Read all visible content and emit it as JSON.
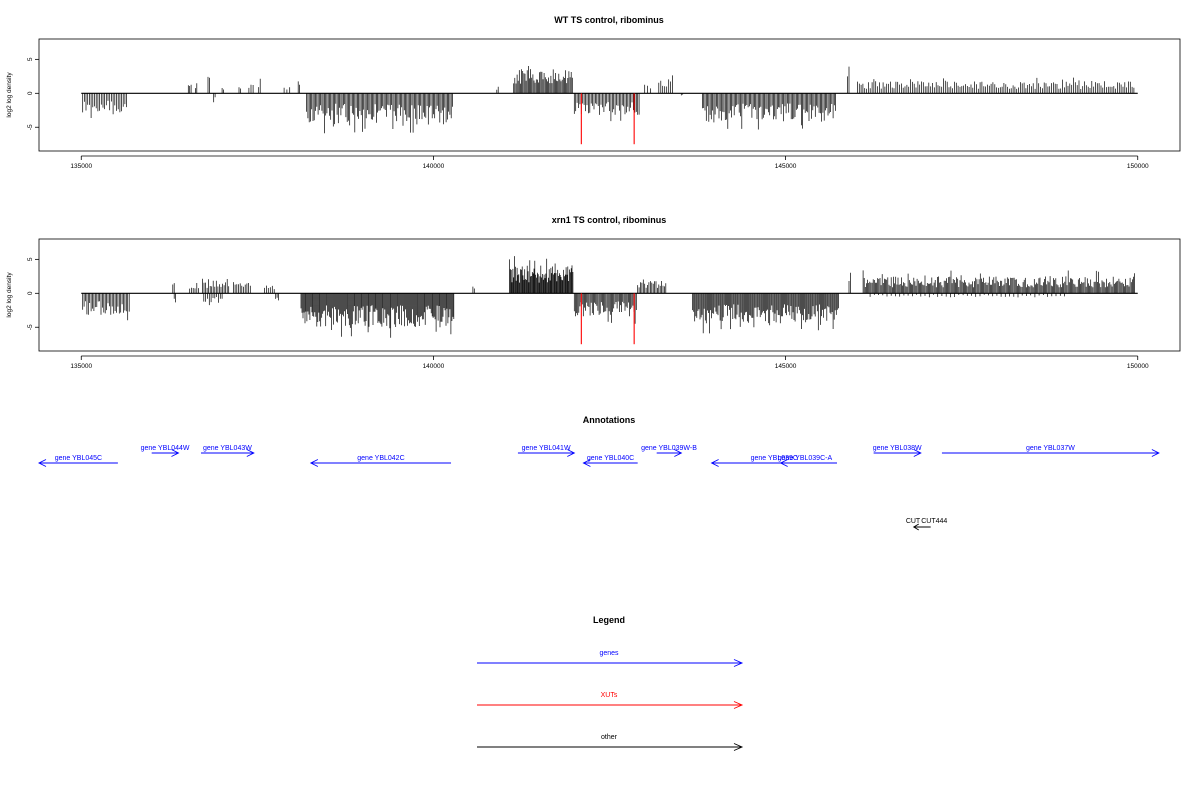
{
  "panels": [
    {
      "title": "WT TS control, ribominus",
      "ylabel": "log2 log density",
      "yticks": [
        5,
        0,
        -5
      ],
      "xticks": [
        135000,
        140000,
        145000,
        150000
      ],
      "xlim": [
        134400,
        150600
      ],
      "ylim": [
        -8.5,
        8
      ],
      "segments": [
        {
          "from": 135020,
          "to": 135660,
          "sign": -1,
          "step": 24,
          "amp": 3,
          "seed": 11
        },
        {
          "from": 136520,
          "to": 136560,
          "sign": 1,
          "step": 20,
          "amp": 1.8,
          "seed": 3
        },
        {
          "from": 136620,
          "to": 136640,
          "sign": 1,
          "step": 20,
          "amp": 2,
          "seed": 4
        },
        {
          "from": 136800,
          "to": 136820,
          "sign": 1,
          "step": 20,
          "amp": 2.6,
          "seed": 5
        },
        {
          "from": 136880,
          "to": 136900,
          "sign": -1,
          "step": 20,
          "amp": 1.6,
          "seed": 6
        },
        {
          "from": 137000,
          "to": 137020,
          "sign": 1,
          "step": 20,
          "amp": 1.1,
          "seed": 7
        },
        {
          "from": 137240,
          "to": 137260,
          "sign": 1,
          "step": 20,
          "amp": 1.1,
          "seed": 8
        },
        {
          "from": 137380,
          "to": 137440,
          "sign": 1,
          "step": 30,
          "amp": 1.6,
          "seed": 9
        },
        {
          "from": 137520,
          "to": 137540,
          "sign": 1,
          "step": 20,
          "amp": 2.3,
          "seed": 10
        },
        {
          "from": 137880,
          "to": 137960,
          "sign": 1,
          "step": 40,
          "amp": 1,
          "seed": 12
        },
        {
          "from": 138080,
          "to": 138100,
          "sign": 1,
          "step": 20,
          "amp": 1.8,
          "seed": 13
        },
        {
          "from": 138200,
          "to": 140280,
          "sign": -1,
          "step": 18,
          "amp": 4.4,
          "seed": 14
        },
        {
          "from": 140900,
          "to": 140920,
          "sign": 1,
          "step": 20,
          "amp": 1,
          "seed": 15
        },
        {
          "from": 141140,
          "to": 141980,
          "sign": 1,
          "step": 16,
          "amp": 3.6,
          "seed": 16
        },
        {
          "from": 142000,
          "to": 142920,
          "sign": -1,
          "step": 20,
          "amp": 3.2,
          "seed": 17
        },
        {
          "from": 143000,
          "to": 143080,
          "sign": 1,
          "step": 40,
          "amp": 1.1,
          "seed": 18
        },
        {
          "from": 143200,
          "to": 143420,
          "sign": 1,
          "step": 28,
          "amp": 2.1,
          "seed": 19
        },
        {
          "from": 143520,
          "to": 143540,
          "sign": -1,
          "step": 20,
          "amp": 0.5,
          "seed": 20
        },
        {
          "from": 143820,
          "to": 145720,
          "sign": -1,
          "step": 18,
          "amp": 4.2,
          "seed": 21
        },
        {
          "from": 145880,
          "to": 145900,
          "sign": 1,
          "step": 20,
          "amp": 6,
          "seed": 22
        },
        {
          "from": 146020,
          "to": 149960,
          "sign": 1,
          "step": 26,
          "amp": 1.8,
          "seed": 23
        }
      ],
      "red_bars": [
        {
          "x": 142100,
          "y": -7.5
        },
        {
          "x": 142850,
          "y": -7.5
        }
      ]
    },
    {
      "title": "xrn1 TS control, ribominus",
      "ylabel": "log2 log density",
      "yticks": [
        5,
        0,
        -5
      ],
      "xticks": [
        135000,
        140000,
        145000,
        150000
      ],
      "xlim": [
        134400,
        150600
      ],
      "ylim": [
        -8.5,
        8
      ],
      "segments": [
        {
          "from": 135020,
          "to": 135680,
          "sign": -1,
          "step": 20,
          "amp": 3.2,
          "seed": 31
        },
        {
          "from": 136300,
          "to": 136320,
          "sign": 1,
          "step": 20,
          "amp": 2,
          "seed": 32
        },
        {
          "from": 136320,
          "to": 136340,
          "sign": -1,
          "step": 20,
          "amp": 1.5,
          "seed": 33
        },
        {
          "from": 136540,
          "to": 136680,
          "sign": 1,
          "step": 25,
          "amp": 1.6,
          "seed": 34
        },
        {
          "from": 136720,
          "to": 137100,
          "sign": 1,
          "step": 22,
          "amp": 2.2,
          "seed": 35
        },
        {
          "from": 136740,
          "to": 137000,
          "sign": -1,
          "step": 26,
          "amp": 1.4,
          "seed": 36
        },
        {
          "from": 137160,
          "to": 137420,
          "sign": 1,
          "step": 24,
          "amp": 1.6,
          "seed": 37
        },
        {
          "from": 137600,
          "to": 137740,
          "sign": 1,
          "step": 28,
          "amp": 1.2,
          "seed": 38
        },
        {
          "from": 137760,
          "to": 137800,
          "sign": -1,
          "step": 20,
          "amp": 1.5,
          "seed": 39
        },
        {
          "from": 138120,
          "to": 140300,
          "sign": -1,
          "step": 14,
          "amp": 5,
          "seed": 40
        },
        {
          "from": 140560,
          "to": 140580,
          "sign": 1,
          "step": 20,
          "amp": 1,
          "seed": 41
        },
        {
          "from": 141080,
          "to": 141980,
          "sign": 1,
          "step": 12,
          "amp": 4.2,
          "seed": 42
        },
        {
          "from": 142000,
          "to": 142880,
          "sign": -1,
          "step": 16,
          "amp": 3.4,
          "seed": 43
        },
        {
          "from": 142900,
          "to": 143300,
          "sign": 1,
          "step": 20,
          "amp": 1.8,
          "seed": 44
        },
        {
          "from": 143680,
          "to": 145760,
          "sign": -1,
          "step": 15,
          "amp": 4.4,
          "seed": 45
        },
        {
          "from": 145900,
          "to": 145920,
          "sign": 1,
          "step": 20,
          "amp": 4,
          "seed": 46
        },
        {
          "from": 146100,
          "to": 149960,
          "sign": 1,
          "step": 16,
          "amp": 2.5,
          "seed": 47
        },
        {
          "from": 146200,
          "to": 149000,
          "sign": -1,
          "step": 60,
          "amp": 0.6,
          "seed": 48
        }
      ],
      "red_bars": [
        {
          "x": 142100,
          "y": -7.5
        },
        {
          "x": 142850,
          "y": -7.5
        }
      ]
    }
  ],
  "annotations": {
    "title": "Annotations",
    "genes": [
      {
        "label": "gene YBL045C",
        "start": 134400,
        "end": 135520,
        "strand": "-",
        "row": 0
      },
      {
        "label": "gene YBL044W",
        "start": 136000,
        "end": 136380,
        "strand": "+",
        "row": 1
      },
      {
        "label": "gene YBL043W",
        "start": 136700,
        "end": 137450,
        "strand": "+",
        "row": 1
      },
      {
        "label": "gene YBL042C",
        "start": 138260,
        "end": 140250,
        "strand": "-",
        "row": 0
      },
      {
        "label": "gene YBL041W",
        "start": 141200,
        "end": 142000,
        "strand": "+",
        "row": 1
      },
      {
        "label": "gene YBL040C",
        "start": 142130,
        "end": 142900,
        "strand": "-",
        "row": 0
      },
      {
        "label": "gene YBL039W-B",
        "start": 143170,
        "end": 143520,
        "strand": "+",
        "row": 1
      },
      {
        "label": "gene YBL039C",
        "start": 143950,
        "end": 145730,
        "strand": "-",
        "row": 0
      },
      {
        "label": "gene YBL039C-A",
        "start": 144930,
        "end": 145620,
        "strand": "-",
        "row": 0
      },
      {
        "label": "gene YBL038W",
        "start": 146250,
        "end": 146920,
        "strand": "+",
        "row": 1
      },
      {
        "label": "gene YBL037W",
        "start": 147220,
        "end": 150300,
        "strand": "+",
        "row": 1
      }
    ],
    "other": [
      {
        "label": "CUT",
        "label2": "CUT444",
        "start": 146820,
        "end": 147060,
        "strand": "-"
      }
    ]
  },
  "legend": {
    "title": "Legend",
    "items": [
      {
        "label": "genes",
        "color": "#0000ff"
      },
      {
        "label": "XUTs",
        "color": "#ff0000"
      },
      {
        "label": "other",
        "color": "#000000"
      }
    ]
  },
  "colors": {
    "genes": "#0000ff",
    "xut": "#ff0000",
    "other": "#000000",
    "signal": "#000000"
  }
}
